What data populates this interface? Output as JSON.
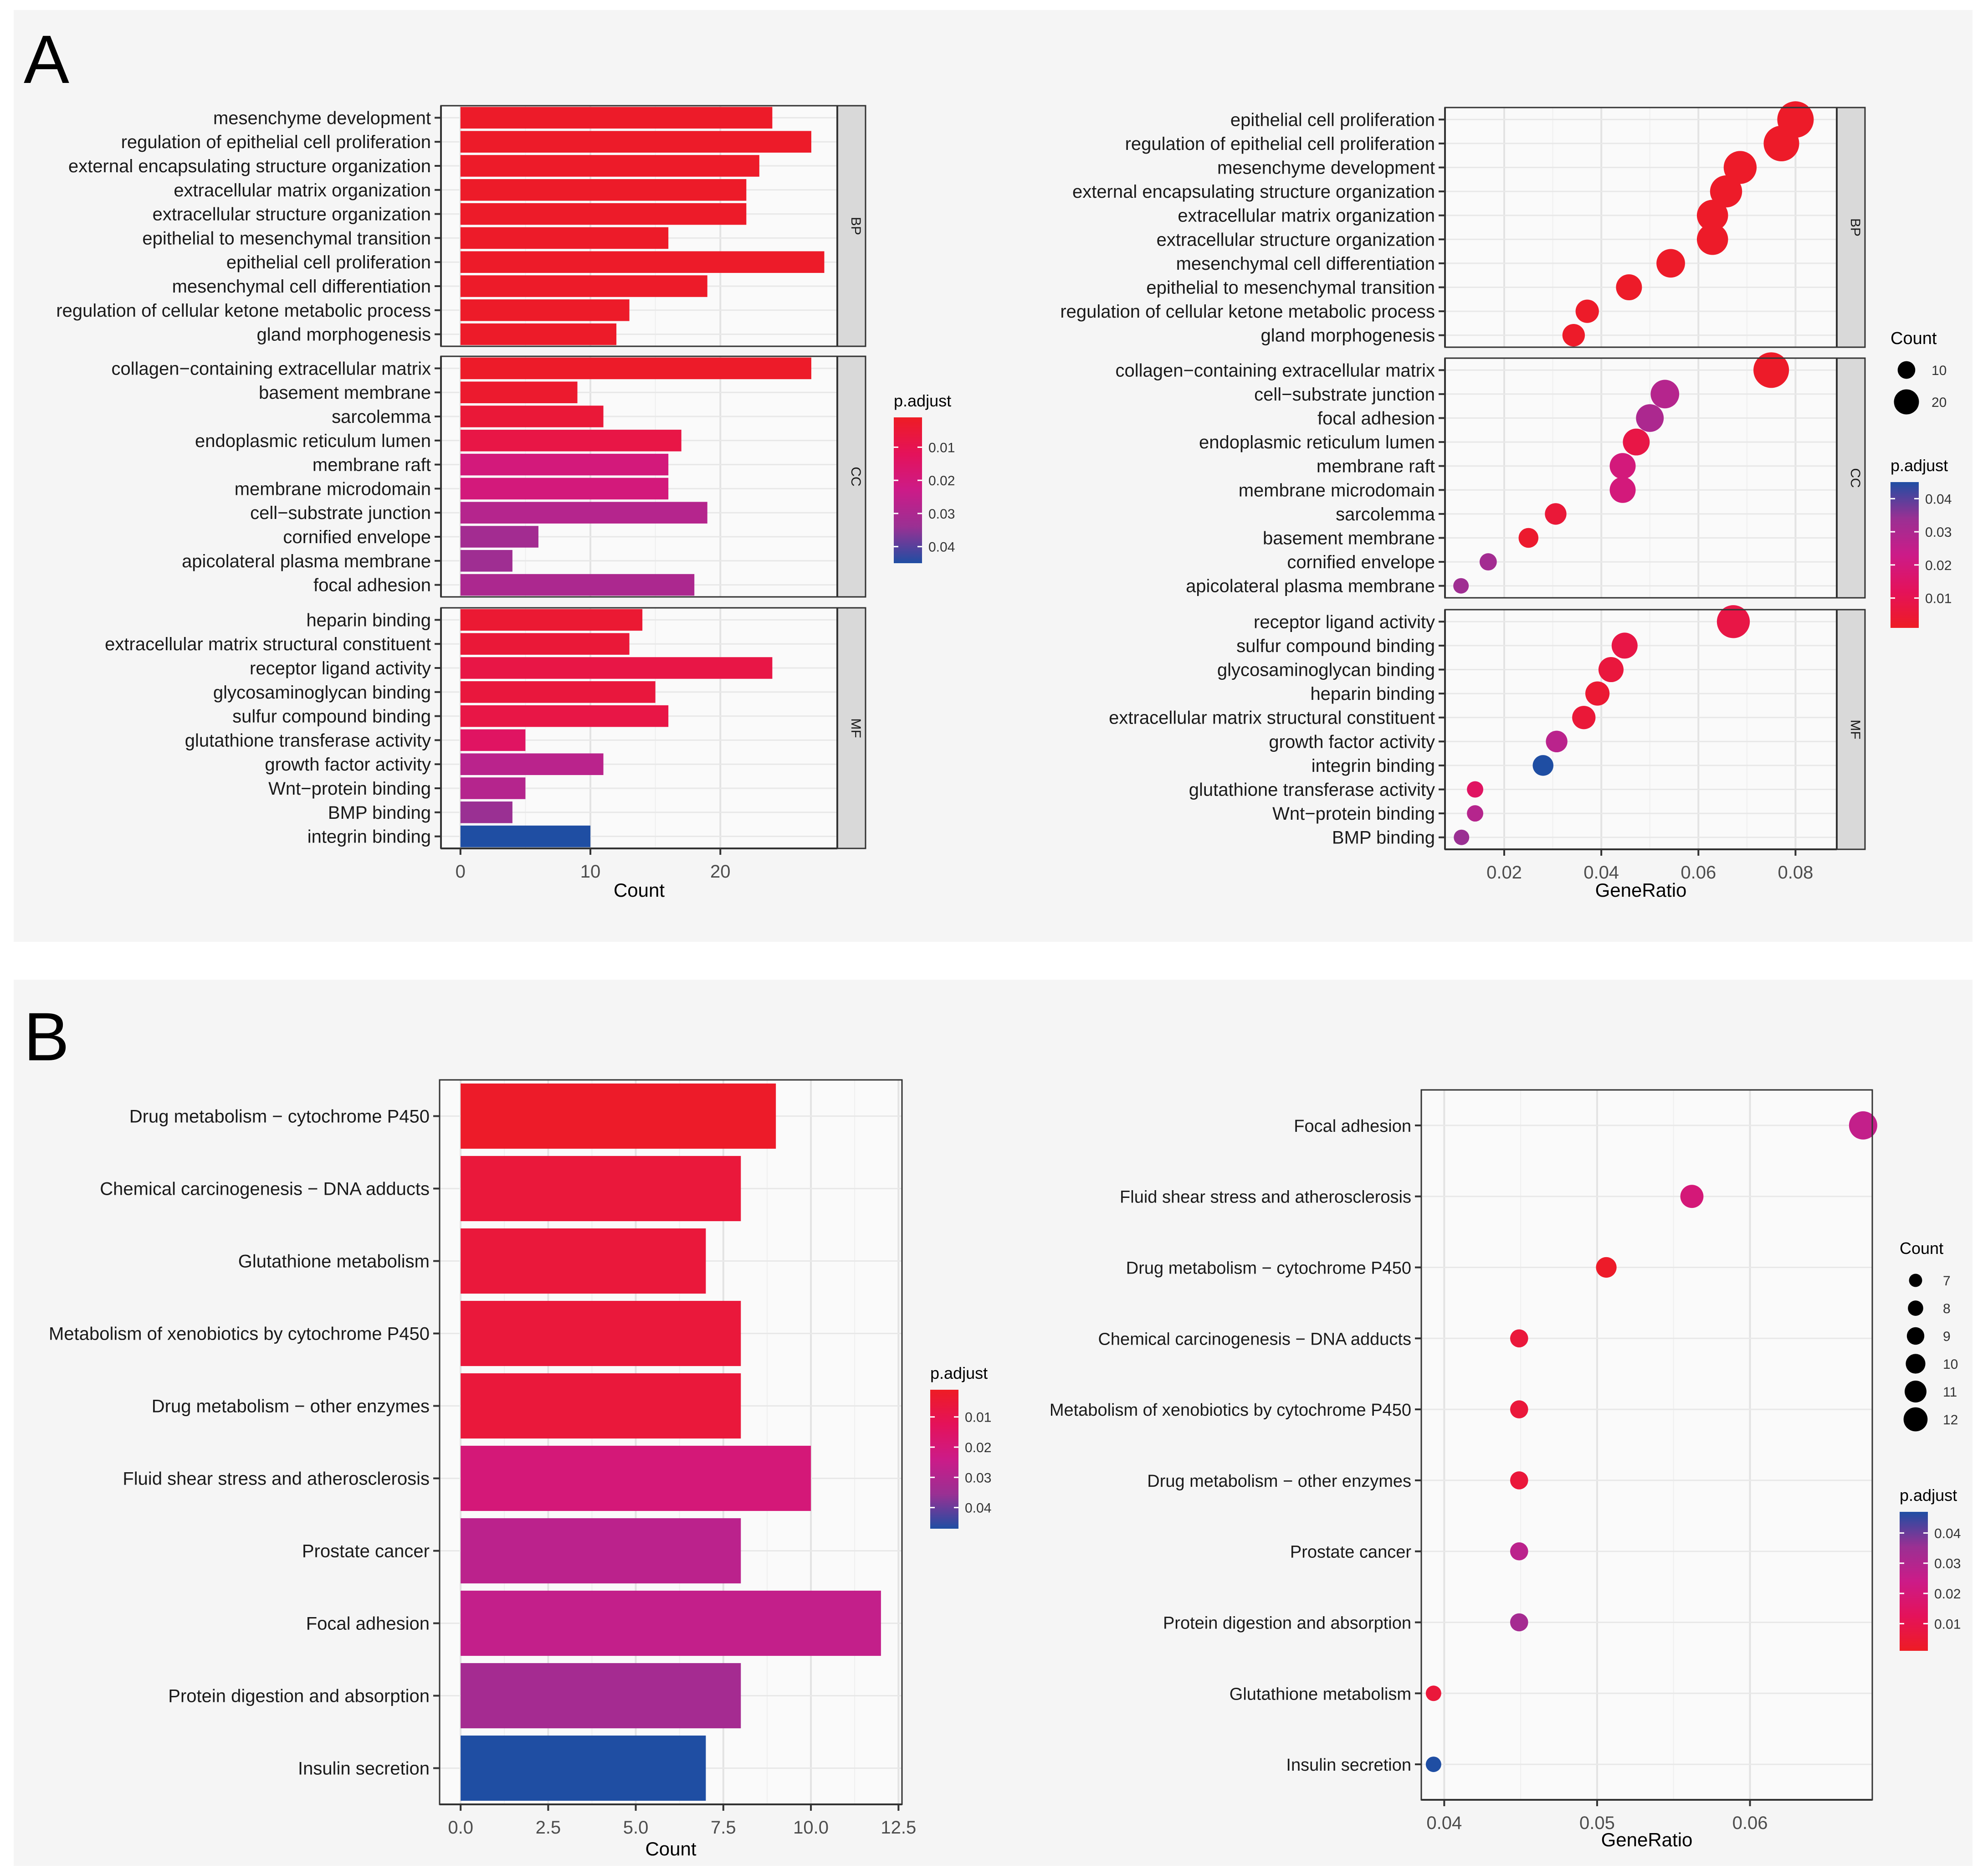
{
  "panels": {
    "a_label": "A",
    "b_label": "B"
  },
  "style": {
    "colormap": [
      "#ee1c24",
      "#e4125a",
      "#cc1b88",
      "#9a3093",
      "#1f4ea3"
    ],
    "panel_bg": "#f5f5f5",
    "plot_bg": "#fafafa",
    "strip_bg": "#d9d9d9"
  },
  "chart_data": [
    {
      "id": "A-bar",
      "type": "bar",
      "orientation": "horizontal",
      "xlabel": "Count",
      "xlim": [
        -1.5,
        29
      ],
      "xticks": [
        0,
        10,
        20
      ],
      "xtick_labels": [
        "0",
        "10",
        "20"
      ],
      "facets": [
        {
          "name": "BP",
          "categories": [
            "mesenchyme development",
            "regulation of epithelial cell proliferation",
            "external encapsulating structure organization",
            "extracellular matrix organization",
            "extracellular structure organization",
            "epithelial to mesenchymal transition",
            "epithelial cell proliferation",
            "mesenchymal cell differentiation",
            "regulation of cellular ketone metabolic process",
            "gland morphogenesis"
          ],
          "values": [
            24,
            27,
            23,
            22,
            22,
            16,
            28,
            19,
            13,
            12
          ],
          "p_adjust": [
            0.002,
            0.002,
            0.002,
            0.002,
            0.002,
            0.002,
            0.002,
            0.002,
            0.002,
            0.002
          ]
        },
        {
          "name": "CC",
          "categories": [
            "collagen−containing extracellular matrix",
            "basement membrane",
            "sarcolemma",
            "endoplasmic reticulum lumen",
            "membrane raft",
            "membrane microdomain",
            "cell−substrate junction",
            "cornified envelope",
            "apicolateral plasma membrane",
            "focal adhesion"
          ],
          "values": [
            27,
            9,
            11,
            17,
            16,
            16,
            19,
            6,
            4,
            18
          ],
          "p_adjust": [
            0.002,
            0.003,
            0.005,
            0.008,
            0.02,
            0.02,
            0.028,
            0.032,
            0.033,
            0.03
          ]
        },
        {
          "name": "MF",
          "categories": [
            "heparin binding",
            "extracellular matrix structural constituent",
            "receptor ligand activity",
            "glycosaminoglycan binding",
            "sulfur compound binding",
            "glutathione transferase activity",
            "growth factor activity",
            "Wnt−protein binding",
            "BMP binding",
            "integrin binding"
          ],
          "values": [
            14,
            13,
            24,
            15,
            16,
            5,
            11,
            5,
            4,
            10
          ],
          "p_adjust": [
            0.004,
            0.005,
            0.008,
            0.006,
            0.008,
            0.014,
            0.027,
            0.028,
            0.034,
            0.045
          ]
        }
      ],
      "legend": {
        "title": "p.adjust",
        "ticks": [
          0.01,
          0.02,
          0.03,
          0.04
        ],
        "labels": [
          "0.01",
          "0.02",
          "0.03",
          "0.04"
        ],
        "range": [
          0.001,
          0.045
        ],
        "direction": "low-top"
      }
    },
    {
      "id": "A-dot",
      "type": "scatter",
      "xlabel": "GeneRatio",
      "xlim": [
        0.0078,
        0.0885
      ],
      "xticks": [
        0.02,
        0.04,
        0.06,
        0.08
      ],
      "xtick_labels": [
        "0.02",
        "0.04",
        "0.06",
        "0.08"
      ],
      "facets": [
        {
          "name": "BP",
          "categories": [
            "epithelial cell proliferation",
            "regulation of epithelial cell proliferation",
            "mesenchyme development",
            "external encapsulating structure organization",
            "extracellular matrix organization",
            "extracellular structure organization",
            "mesenchymal cell differentiation",
            "epithelial to mesenchymal transition",
            "regulation of cellular ketone metabolic process",
            "gland morphogenesis"
          ],
          "x": [
            0.08,
            0.0771,
            0.0686,
            0.0657,
            0.0629,
            0.0629,
            0.0543,
            0.0457,
            0.0371,
            0.0343
          ],
          "count": [
            28,
            27,
            24,
            23,
            22,
            22,
            19,
            16,
            13,
            12
          ],
          "p_adjust": [
            0.002,
            0.002,
            0.002,
            0.002,
            0.002,
            0.002,
            0.002,
            0.002,
            0.002,
            0.002
          ]
        },
        {
          "name": "CC",
          "categories": [
            "collagen−containing extracellular matrix",
            "cell−substrate junction",
            "focal adhesion",
            "endoplasmic reticulum lumen",
            "membrane raft",
            "membrane microdomain",
            "sarcolemma",
            "basement membrane",
            "cornified envelope",
            "apicolateral plasma membrane"
          ],
          "x": [
            0.075,
            0.0531,
            0.05,
            0.0472,
            0.0444,
            0.0444,
            0.0306,
            0.025,
            0.0167,
            0.0111
          ],
          "count": [
            27,
            19,
            18,
            17,
            16,
            16,
            11,
            9,
            6,
            4
          ],
          "p_adjust": [
            0.002,
            0.028,
            0.03,
            0.008,
            0.02,
            0.02,
            0.005,
            0.003,
            0.032,
            0.033
          ]
        },
        {
          "name": "MF",
          "categories": [
            "receptor ligand activity",
            "sulfur compound binding",
            "glycosaminoglycan binding",
            "heparin binding",
            "extracellular matrix structural constituent",
            "growth factor activity",
            "integrin binding",
            "glutathione transferase activity",
            "Wnt−protein binding",
            "BMP binding"
          ],
          "x": [
            0.0672,
            0.0448,
            0.042,
            0.0392,
            0.0364,
            0.0308,
            0.028,
            0.014,
            0.014,
            0.0112
          ],
          "count": [
            24,
            16,
            15,
            14,
            13,
            11,
            10,
            5,
            5,
            4
          ],
          "p_adjust": [
            0.008,
            0.008,
            0.006,
            0.004,
            0.005,
            0.027,
            0.045,
            0.014,
            0.028,
            0.034
          ]
        }
      ],
      "size_legend": {
        "title": "Count",
        "values": [
          10,
          20
        ],
        "labels": [
          "10",
          "20"
        ]
      },
      "color_legend": {
        "title": "p.adjust",
        "ticks": [
          0.01,
          0.02,
          0.03,
          0.04
        ],
        "labels": [
          "0.01",
          "0.02",
          "0.03",
          "0.04"
        ],
        "range": [
          0.001,
          0.045
        ],
        "direction": "low-bottom"
      }
    },
    {
      "id": "B-bar",
      "type": "bar",
      "orientation": "horizontal",
      "xlabel": "Count",
      "xlim": [
        -0.6,
        12.6
      ],
      "xticks": [
        0,
        2.5,
        5,
        7.5,
        10,
        12.5
      ],
      "xtick_labels": [
        "0.0",
        "2.5",
        "5.0",
        "7.5",
        "10.0",
        "12.5"
      ],
      "categories": [
        "Drug metabolism − cytochrome P450",
        "Chemical carcinogenesis − DNA adducts",
        "Glutathione metabolism",
        "Metabolism of xenobiotics by cytochrome P450",
        "Drug metabolism − other enzymes",
        "Fluid shear stress and atherosclerosis",
        "Prostate cancer",
        "Focal adhesion",
        "Protein digestion and absorption",
        "Insulin secretion"
      ],
      "values": [
        9,
        8,
        7,
        8,
        8,
        10,
        8,
        12,
        8,
        7
      ],
      "p_adjust": [
        0.002,
        0.006,
        0.006,
        0.006,
        0.006,
        0.02,
        0.028,
        0.026,
        0.033,
        0.047
      ],
      "legend": {
        "title": "p.adjust",
        "ticks": [
          0.01,
          0.02,
          0.03,
          0.04
        ],
        "labels": [
          "0.01",
          "0.02",
          "0.03",
          "0.04"
        ],
        "range": [
          0.001,
          0.047
        ],
        "direction": "low-top"
      }
    },
    {
      "id": "B-dot",
      "type": "scatter",
      "xlabel": "GeneRatio",
      "xlim": [
        0.0385,
        0.068
      ],
      "xticks": [
        0.04,
        0.05,
        0.06
      ],
      "xtick_labels": [
        "0.04",
        "0.05",
        "0.06"
      ],
      "categories": [
        "Focal adhesion",
        "Fluid shear stress and atherosclerosis",
        "Drug metabolism − cytochrome P450",
        "Chemical carcinogenesis − DNA adducts",
        "Metabolism of xenobiotics by cytochrome P450",
        "Drug metabolism − other enzymes",
        "Prostate cancer",
        "Protein digestion and absorption",
        "Glutathione metabolism",
        "Insulin secretion"
      ],
      "x": [
        0.0674,
        0.0562,
        0.0506,
        0.0449,
        0.0449,
        0.0449,
        0.0449,
        0.0449,
        0.0393,
        0.0393
      ],
      "count": [
        12,
        10,
        9,
        8,
        8,
        8,
        8,
        8,
        7,
        7
      ],
      "p_adjust": [
        0.026,
        0.02,
        0.002,
        0.006,
        0.006,
        0.006,
        0.028,
        0.033,
        0.006,
        0.047
      ],
      "size_legend": {
        "title": "Count",
        "values": [
          7,
          8,
          9,
          10,
          11,
          12
        ],
        "labels": [
          "7",
          "8",
          "9",
          "10",
          "11",
          "12"
        ]
      },
      "color_legend": {
        "title": "p.adjust",
        "ticks": [
          0.01,
          0.02,
          0.03,
          0.04
        ],
        "labels": [
          "0.01",
          "0.02",
          "0.03",
          "0.04"
        ],
        "range": [
          0.001,
          0.047
        ],
        "direction": "low-bottom"
      }
    }
  ]
}
